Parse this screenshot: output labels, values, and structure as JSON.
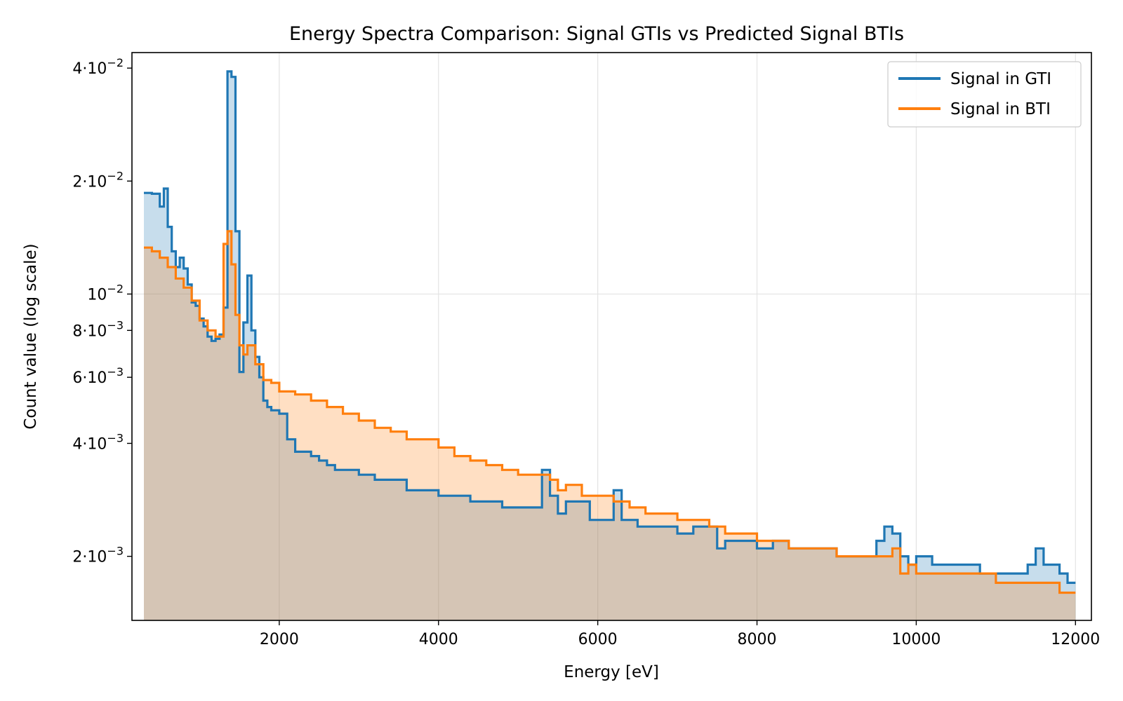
{
  "chart_data": {
    "type": "area",
    "title": "Energy Spectra Comparison: Signal GTIs vs Predicted Signal BTIs",
    "xlabel": "Energy [eV]",
    "ylabel": "Count value (log scale)",
    "xlim": [
      150,
      12200
    ],
    "ylim": [
      0.00135,
      0.044
    ],
    "yscale": "log",
    "grid": true,
    "legend_position": "top-right",
    "x_ticks": [
      2000,
      4000,
      6000,
      8000,
      10000,
      12000
    ],
    "x_tick_labels": [
      "2000",
      "4000",
      "6000",
      "8000",
      "10000",
      "12000"
    ],
    "y_ticks": [
      {
        "value": 0.04,
        "mant": "4·",
        "base": "10",
        "exp": "−2"
      },
      {
        "value": 0.02,
        "mant": "2·",
        "base": "10",
        "exp": "−2"
      },
      {
        "value": 0.01,
        "mant": "",
        "base": "10",
        "exp": "−2"
      },
      {
        "value": 0.008,
        "mant": "8·",
        "base": "10",
        "exp": "−3"
      },
      {
        "value": 0.006,
        "mant": "6·",
        "base": "10",
        "exp": "−3"
      },
      {
        "value": 0.004,
        "mant": "4·",
        "base": "10",
        "exp": "−3"
      },
      {
        "value": 0.002,
        "mant": "2·",
        "base": "10",
        "exp": "−3"
      }
    ],
    "series": [
      {
        "name": "Signal in GTI",
        "color": "#1f77b4",
        "x": [
          300,
          400,
          500,
          550,
          600,
          650,
          700,
          750,
          800,
          850,
          900,
          950,
          1000,
          1050,
          1100,
          1150,
          1200,
          1250,
          1300,
          1350,
          1400,
          1450,
          1500,
          1550,
          1600,
          1650,
          1700,
          1750,
          1800,
          1850,
          1900,
          2000,
          2100,
          2200,
          2300,
          2400,
          2500,
          2600,
          2700,
          2800,
          2900,
          3000,
          3200,
          3400,
          3600,
          3800,
          4000,
          4200,
          4400,
          4600,
          4800,
          5000,
          5200,
          5300,
          5400,
          5500,
          5600,
          5800,
          5900,
          6000,
          6200,
          6300,
          6400,
          6500,
          6600,
          6800,
          7000,
          7200,
          7400,
          7500,
          7600,
          7800,
          8000,
          8200,
          8400,
          8600,
          8800,
          9000,
          9200,
          9400,
          9500,
          9600,
          9700,
          9800,
          9900,
          10000,
          10200,
          10400,
          10600,
          10800,
          11000,
          11200,
          11400,
          11500,
          11600,
          11800,
          11900
        ],
        "values": [
          0.0186,
          0.0185,
          0.0171,
          0.0191,
          0.0151,
          0.013,
          0.0118,
          0.0125,
          0.0117,
          0.0106,
          0.0095,
          0.0093,
          0.0086,
          0.0082,
          0.0077,
          0.0075,
          0.0076,
          0.0078,
          0.0092,
          0.0392,
          0.0379,
          0.0147,
          0.0062,
          0.0084,
          0.0112,
          0.008,
          0.0068,
          0.006,
          0.0052,
          0.005,
          0.0049,
          0.0048,
          0.0041,
          0.0038,
          0.0038,
          0.0037,
          0.0036,
          0.0035,
          0.0034,
          0.0034,
          0.0034,
          0.0033,
          0.0032,
          0.0032,
          0.003,
          0.003,
          0.0029,
          0.0029,
          0.0028,
          0.0028,
          0.0027,
          0.0027,
          0.0027,
          0.0034,
          0.0029,
          0.0026,
          0.0028,
          0.0028,
          0.0025,
          0.0025,
          0.003,
          0.0025,
          0.0025,
          0.0024,
          0.0024,
          0.0024,
          0.0023,
          0.0024,
          0.0024,
          0.0021,
          0.0022,
          0.0022,
          0.0021,
          0.0022,
          0.0021,
          0.0021,
          0.0021,
          0.002,
          0.002,
          0.002,
          0.0022,
          0.0024,
          0.0023,
          0.002,
          0.0019,
          0.002,
          0.0019,
          0.0019,
          0.0019,
          0.0018,
          0.0018,
          0.0018,
          0.0019,
          0.0021,
          0.0019,
          0.0018,
          0.0017
        ]
      },
      {
        "name": "Signal in BTI",
        "color": "#ff7f0e",
        "x": [
          300,
          400,
          500,
          600,
          700,
          800,
          900,
          1000,
          1100,
          1200,
          1300,
          1350,
          1400,
          1450,
          1500,
          1550,
          1600,
          1700,
          1800,
          1900,
          2000,
          2200,
          2400,
          2600,
          2800,
          3000,
          3200,
          3400,
          3600,
          3800,
          4000,
          4200,
          4400,
          4600,
          4800,
          5000,
          5200,
          5400,
          5500,
          5600,
          5800,
          6000,
          6200,
          6400,
          6600,
          6800,
          7000,
          7200,
          7400,
          7600,
          7800,
          8000,
          8200,
          8400,
          8600,
          8800,
          9000,
          9200,
          9400,
          9600,
          9700,
          9800,
          9900,
          10000,
          10200,
          10400,
          10600,
          10800,
          11000,
          11200,
          11400,
          11600,
          11800,
          11900
        ],
        "values": [
          0.0133,
          0.013,
          0.0125,
          0.0118,
          0.011,
          0.0104,
          0.0096,
          0.0085,
          0.008,
          0.0077,
          0.0136,
          0.0147,
          0.012,
          0.0088,
          0.0073,
          0.0069,
          0.0073,
          0.0065,
          0.0059,
          0.0058,
          0.0055,
          0.0054,
          0.0052,
          0.005,
          0.0048,
          0.0046,
          0.0044,
          0.0043,
          0.0041,
          0.0041,
          0.0039,
          0.0037,
          0.0036,
          0.0035,
          0.0034,
          0.0033,
          0.0033,
          0.0032,
          0.003,
          0.0031,
          0.0029,
          0.0029,
          0.0028,
          0.0027,
          0.0026,
          0.0026,
          0.0025,
          0.0025,
          0.0024,
          0.0023,
          0.0023,
          0.0022,
          0.0022,
          0.0021,
          0.0021,
          0.0021,
          0.002,
          0.002,
          0.002,
          0.002,
          0.0021,
          0.0018,
          0.0019,
          0.0018,
          0.0018,
          0.0018,
          0.0018,
          0.0018,
          0.0017,
          0.0017,
          0.0017,
          0.0017,
          0.0016,
          0.0016
        ]
      }
    ]
  }
}
